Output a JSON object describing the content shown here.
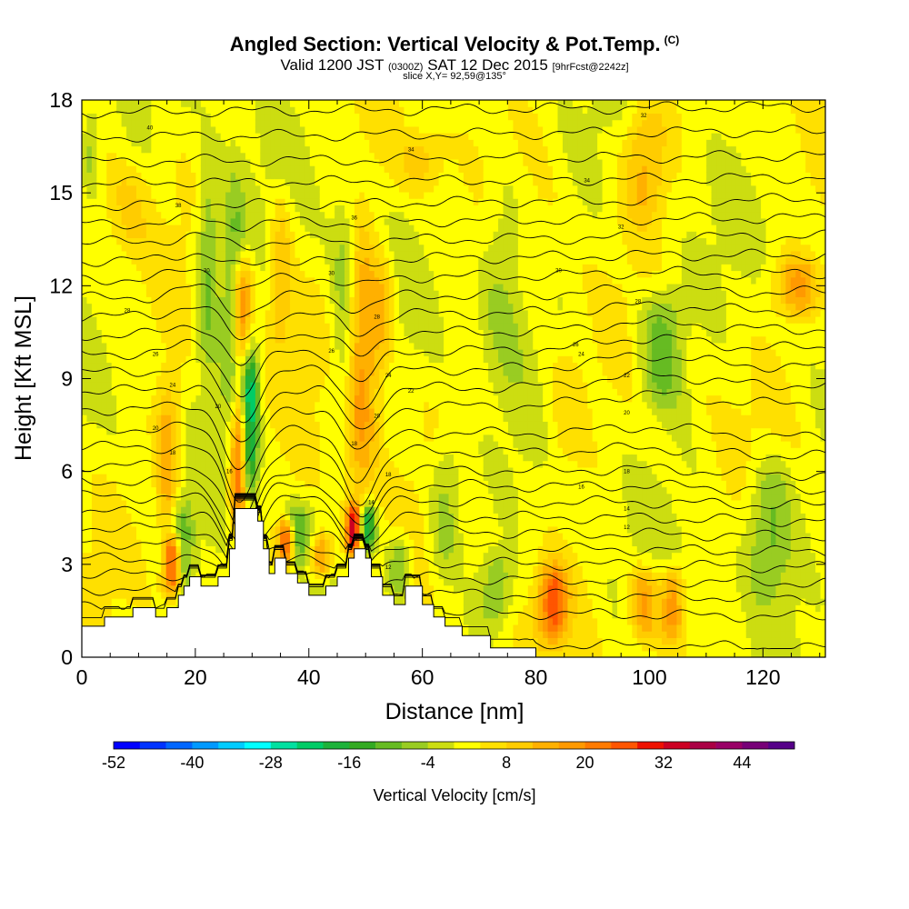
{
  "title": {
    "main": "Angled Section: Vertical Velocity & Pot.Temp.",
    "main_suffix": "(C)",
    "valid_prefix": "Valid 1200 JST",
    "valid_utc": "(0300Z)",
    "valid_date": "SAT 12 Dec 2015",
    "forecast": "[9hrFcst@2242z]",
    "slice": "slice X,Y= 92,59@135°"
  },
  "chart_data": {
    "type": "heatmap",
    "title": "Angled Section: Vertical Velocity & Pot.Temp.",
    "xlabel": "Distance [nm]",
    "ylabel": "Height [Kft MSL]",
    "xlim": [
      0,
      131
    ],
    "ylim": [
      0,
      18
    ],
    "x_ticks": [
      "0",
      "20",
      "40",
      "60",
      "80",
      "100",
      "120"
    ],
    "y_ticks": [
      "0",
      "3",
      "6",
      "9",
      "12",
      "15",
      "18"
    ],
    "colorbar": {
      "label": "Vertical Velocity [cm/s]",
      "tick_labels": [
        "-52",
        "-40",
        "-28",
        "-16",
        "-4",
        "8",
        "20",
        "32",
        "44"
      ],
      "min": -52,
      "max": 52,
      "step": 4,
      "colors": [
        "#0000ff",
        "#0033ff",
        "#0066ff",
        "#0099ff",
        "#00ccff",
        "#00ffff",
        "#00e0a0",
        "#00cc66",
        "#1db23a",
        "#33aa22",
        "#66bb22",
        "#99cc22",
        "#ccdd11",
        "#ffff00",
        "#ffe000",
        "#ffcc00",
        "#ffb000",
        "#ff9900",
        "#ff7a00",
        "#ff5500",
        "#ee1100",
        "#cc0022",
        "#aa0044",
        "#990066",
        "#770077",
        "#550088"
      ]
    },
    "terrain": [
      [
        0,
        1.0
      ],
      [
        4,
        1.0
      ],
      [
        4,
        1.3
      ],
      [
        9,
        1.3
      ],
      [
        9,
        1.6
      ],
      [
        13,
        1.6
      ],
      [
        13,
        1.3
      ],
      [
        15,
        1.3
      ],
      [
        15,
        1.6
      ],
      [
        17,
        1.6
      ],
      [
        17,
        2.0
      ],
      [
        18,
        2.0
      ],
      [
        18,
        2.3
      ],
      [
        19,
        2.3
      ],
      [
        19,
        2.6
      ],
      [
        21,
        2.6
      ],
      [
        21,
        2.3
      ],
      [
        24,
        2.3
      ],
      [
        24,
        2.6
      ],
      [
        26,
        2.6
      ],
      [
        26,
        3.5
      ],
      [
        27,
        3.5
      ],
      [
        27,
        4.8
      ],
      [
        31,
        4.8
      ],
      [
        31,
        4.4
      ],
      [
        32,
        4.4
      ],
      [
        32,
        3.5
      ],
      [
        33,
        3.5
      ],
      [
        33,
        2.7
      ],
      [
        34,
        2.7
      ],
      [
        34,
        3.2
      ],
      [
        36,
        3.2
      ],
      [
        36,
        2.7
      ],
      [
        38,
        2.7
      ],
      [
        38,
        2.4
      ],
      [
        40,
        2.4
      ],
      [
        40,
        2.0
      ],
      [
        43,
        2.0
      ],
      [
        43,
        2.3
      ],
      [
        45,
        2.3
      ],
      [
        45,
        2.6
      ],
      [
        47,
        2.6
      ],
      [
        47,
        3.2
      ],
      [
        48,
        3.2
      ],
      [
        48,
        3.5
      ],
      [
        50,
        3.5
      ],
      [
        50,
        3.2
      ],
      [
        51,
        3.2
      ],
      [
        51,
        2.6
      ],
      [
        53,
        2.6
      ],
      [
        53,
        2.0
      ],
      [
        55,
        2.0
      ],
      [
        55,
        1.7
      ],
      [
        57,
        1.7
      ],
      [
        57,
        2.3
      ],
      [
        60,
        2.3
      ],
      [
        60,
        1.7
      ],
      [
        62,
        1.7
      ],
      [
        62,
        1.3
      ],
      [
        64,
        1.3
      ],
      [
        64,
        1.0
      ],
      [
        67,
        1.0
      ],
      [
        67,
        0.7
      ],
      [
        72,
        0.7
      ],
      [
        72,
        0.3
      ],
      [
        78,
        0.3
      ],
      [
        78,
        0.3
      ],
      [
        80,
        0.3
      ],
      [
        80,
        0
      ],
      [
        131,
        0
      ]
    ],
    "potential_temperature": {
      "units": "C",
      "labels": [
        {
          "x": 12,
          "y": 17.1,
          "text": "40"
        },
        {
          "x": 58,
          "y": 16.4,
          "text": "34"
        },
        {
          "x": 89,
          "y": 15.4,
          "text": "34"
        },
        {
          "x": 99,
          "y": 17.5,
          "text": "32"
        },
        {
          "x": 17,
          "y": 14.6,
          "text": "38"
        },
        {
          "x": 48,
          "y": 14.2,
          "text": "36"
        },
        {
          "x": 95,
          "y": 13.9,
          "text": "32"
        },
        {
          "x": 22,
          "y": 12.5,
          "text": "30"
        },
        {
          "x": 44,
          "y": 12.4,
          "text": "30"
        },
        {
          "x": 84,
          "y": 12.5,
          "text": "30"
        },
        {
          "x": 8,
          "y": 11.2,
          "text": "28"
        },
        {
          "x": 52,
          "y": 11.0,
          "text": "28"
        },
        {
          "x": 98,
          "y": 11.5,
          "text": "28"
        },
        {
          "x": 87,
          "y": 10.1,
          "text": "26"
        },
        {
          "x": 13,
          "y": 9.8,
          "text": "26"
        },
        {
          "x": 44,
          "y": 9.9,
          "text": "26"
        },
        {
          "x": 88,
          "y": 9.8,
          "text": "24"
        },
        {
          "x": 16,
          "y": 8.8,
          "text": "24"
        },
        {
          "x": 54,
          "y": 9.1,
          "text": "24"
        },
        {
          "x": 96,
          "y": 9.1,
          "text": "22"
        },
        {
          "x": 58,
          "y": 8.6,
          "text": "22"
        },
        {
          "x": 24,
          "y": 8.1,
          "text": "20"
        },
        {
          "x": 13,
          "y": 7.4,
          "text": "20"
        },
        {
          "x": 52,
          "y": 7.8,
          "text": "20"
        },
        {
          "x": 96,
          "y": 7.9,
          "text": "20"
        },
        {
          "x": 16,
          "y": 6.6,
          "text": "18"
        },
        {
          "x": 48,
          "y": 6.9,
          "text": "18"
        },
        {
          "x": 54,
          "y": 5.9,
          "text": "18"
        },
        {
          "x": 96,
          "y": 6.0,
          "text": "18"
        },
        {
          "x": 26,
          "y": 6.0,
          "text": "16"
        },
        {
          "x": 88,
          "y": 5.5,
          "text": "16"
        },
        {
          "x": 51,
          "y": 5.0,
          "text": "14"
        },
        {
          "x": 96,
          "y": 4.8,
          "text": "14"
        },
        {
          "x": 96,
          "y": 4.2,
          "text": "12"
        },
        {
          "x": 54,
          "y": 2.9,
          "text": "12"
        }
      ]
    },
    "features": [
      {
        "x": 28,
        "w": 2.2,
        "hmin": 4,
        "hmax": 9,
        "v": 40
      },
      {
        "x": 28,
        "w": 1.8,
        "hmin": 9,
        "hmax": 13,
        "v": 24
      },
      {
        "x": 29.3,
        "w": 1.6,
        "hmin": 4.5,
        "hmax": 10,
        "v": -44
      },
      {
        "x": 26.5,
        "w": 2,
        "hmin": 5,
        "hmax": 15,
        "v": -16
      },
      {
        "x": 22,
        "w": 2,
        "hmin": 9,
        "hmax": 16,
        "v": -12
      },
      {
        "x": 16,
        "w": 1.6,
        "hmin": 2,
        "hmax": 4,
        "v": 32
      },
      {
        "x": 17.5,
        "w": 2,
        "hmin": 2,
        "hmax": 5,
        "v": -14
      },
      {
        "x": 15,
        "w": 2,
        "hmin": 4,
        "hmax": 9,
        "v": 14
      },
      {
        "x": 48,
        "w": 1.6,
        "hmin": 3.3,
        "hmax": 5,
        "v": 36
      },
      {
        "x": 50,
        "w": 1.6,
        "hmin": 3.5,
        "hmax": 5,
        "v": -28
      },
      {
        "x": 49,
        "w": 3,
        "hmin": 5,
        "hmax": 14,
        "v": 16
      },
      {
        "x": 46,
        "w": 2.2,
        "hmin": 7,
        "hmax": 15,
        "v": -10
      },
      {
        "x": 38,
        "w": 2.2,
        "hmin": 3,
        "hmax": 5,
        "v": -14
      },
      {
        "x": 36,
        "w": 1.5,
        "hmin": 3,
        "hmax": 4.5,
        "v": 28
      },
      {
        "x": 42,
        "w": 2,
        "hmin": 2.5,
        "hmax": 4,
        "v": 18
      },
      {
        "x": 56,
        "w": 2,
        "hmin": 2,
        "hmax": 4,
        "v": -12
      },
      {
        "x": 64,
        "w": 3,
        "hmin": 2.5,
        "hmax": 7,
        "v": -10
      },
      {
        "x": 74,
        "w": 4,
        "hmin": 9,
        "hmax": 16,
        "v": -8
      },
      {
        "x": 73,
        "w": 3,
        "hmin": 1,
        "hmax": 3.5,
        "v": -10
      },
      {
        "x": 83,
        "w": 2.5,
        "hmin": 0.5,
        "hmax": 3,
        "v": 22
      },
      {
        "x": 102,
        "w": 4,
        "hmin": 8,
        "hmax": 12,
        "v": -14
      },
      {
        "x": 99,
        "w": 2.5,
        "hmin": 0.5,
        "hmax": 3,
        "v": 16
      },
      {
        "x": 121,
        "w": 4,
        "hmin": 2,
        "hmax": 6.5,
        "v": -12
      },
      {
        "x": 104,
        "w": 2,
        "hmin": 0.5,
        "hmax": 3,
        "v": 18
      },
      {
        "x": 126,
        "w": 4,
        "hmin": 11,
        "hmax": 13,
        "v": 14
      },
      {
        "x": 99,
        "w": 4,
        "hmin": 14,
        "hmax": 18,
        "v": 12
      },
      {
        "x": 60,
        "w": 4,
        "hmin": 15,
        "hmax": 17,
        "v": 8
      },
      {
        "x": 8,
        "w": 4,
        "hmin": 13,
        "hmax": 16,
        "v": 6
      },
      {
        "x": 85,
        "w": 4,
        "hmin": 6,
        "hmax": 10,
        "v": 6
      },
      {
        "x": 1.5,
        "w": 1.5,
        "hmin": 15,
        "hmax": 18,
        "v": -8
      },
      {
        "x": 35,
        "w": 2,
        "hmin": 10,
        "hmax": 15,
        "v": 10
      },
      {
        "x": 53,
        "w": 2,
        "hmin": 9,
        "hmax": 13,
        "v": 10
      }
    ]
  }
}
